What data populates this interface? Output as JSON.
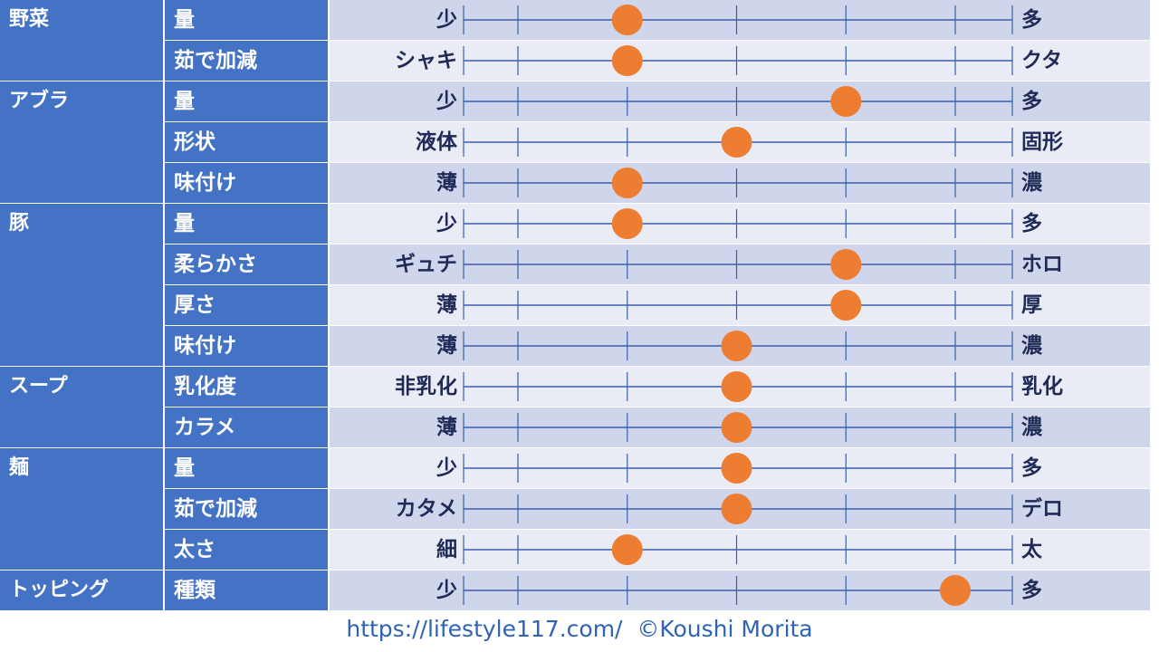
{
  "colors": {
    "header_cell": "#4472C4",
    "row_dark": "#CFD5EA",
    "row_light": "#E9EBF5",
    "scale_line": "#3B5EAD",
    "label_text": "#1F2A56",
    "rating_dot": "#ED7D31",
    "footer_text": "#2E63B5"
  },
  "chart_data": {
    "type": "table",
    "scale_min": 1,
    "scale_max": 5,
    "groups": [
      {
        "category": "野菜",
        "rows": [
          {
            "attribute": "量",
            "low": "少",
            "high": "多",
            "value": 2
          },
          {
            "attribute": "茹で加減",
            "low": "シャキ",
            "high": "クタ",
            "value": 2
          }
        ]
      },
      {
        "category": "アブラ",
        "rows": [
          {
            "attribute": "量",
            "low": "少",
            "high": "多",
            "value": 4
          },
          {
            "attribute": "形状",
            "low": "液体",
            "high": "固形",
            "value": 3
          },
          {
            "attribute": "味付け",
            "low": "薄",
            "high": "濃",
            "value": 2
          }
        ]
      },
      {
        "category": "豚",
        "rows": [
          {
            "attribute": "量",
            "low": "少",
            "high": "多",
            "value": 2
          },
          {
            "attribute": "柔らかさ",
            "low": "ギュチ",
            "high": "ホロ",
            "value": 4
          },
          {
            "attribute": "厚さ",
            "low": "薄",
            "high": "厚",
            "value": 4
          },
          {
            "attribute": "味付け",
            "low": "薄",
            "high": "濃",
            "value": 3
          }
        ]
      },
      {
        "category": "スープ",
        "rows": [
          {
            "attribute": "乳化度",
            "low": "非乳化",
            "high": "乳化",
            "value": 3
          },
          {
            "attribute": "カラメ",
            "low": "薄",
            "high": "濃",
            "value": 3
          }
        ]
      },
      {
        "category": "麺",
        "rows": [
          {
            "attribute": "量",
            "low": "少",
            "high": "多",
            "value": 3
          },
          {
            "attribute": "茹で加減",
            "low": "カタメ",
            "high": "デロ",
            "value": 3
          },
          {
            "attribute": "太さ",
            "low": "細",
            "high": "太",
            "value": 2
          }
        ]
      },
      {
        "category": "トッピング",
        "rows": [
          {
            "attribute": "種類",
            "low": "少",
            "high": "多",
            "value": 5
          }
        ]
      }
    ]
  },
  "footer": {
    "text": "https://lifestyle117.com/  ©Koushi Morita"
  }
}
